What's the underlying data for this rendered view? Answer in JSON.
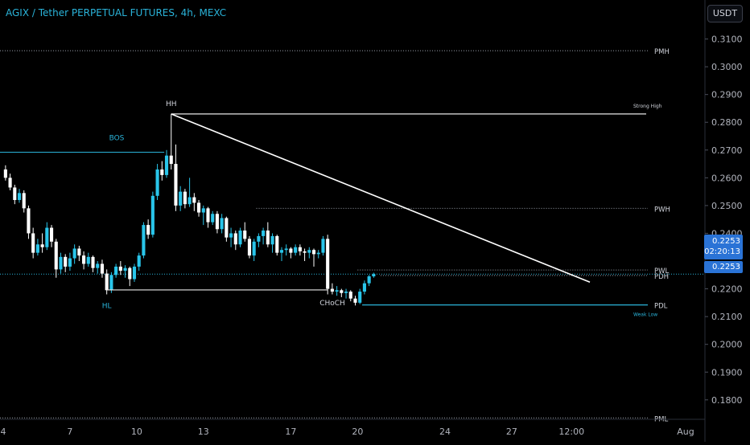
{
  "header": {
    "title": "AGIX / Tether PERPETUAL FUTURES, 4h, MEXC",
    "currency_label": "USDT"
  },
  "price_badge": {
    "price": "0.2253",
    "countdown": "02:20:13",
    "price_line": "0.2253"
  },
  "colors": {
    "background": "#000000",
    "accent": "#2ab3d9",
    "candle_up": "#29c5ea",
    "candle_down": "#ffffff",
    "price_badge": "#2a73d6",
    "level_line": "#ffffff"
  },
  "chart_data": {
    "type": "candlestick",
    "ylim": [
      0.173,
      0.3145
    ],
    "y_ticks": [
      "0.3100",
      "0.3000",
      "0.2900",
      "0.2800",
      "0.2700",
      "0.2600",
      "0.2500",
      "0.2400",
      "0.2200",
      "0.2100",
      "0.2000",
      "0.1900",
      "0.1800"
    ],
    "x_ticks": [
      "4",
      "7",
      "10",
      "13",
      "17",
      "20",
      "24",
      "27",
      "12:00",
      "Aug"
    ],
    "candles": [
      [
        0.263,
        0.2645,
        0.259,
        0.26
      ],
      [
        0.26,
        0.2615,
        0.2555,
        0.2565
      ],
      [
        0.2565,
        0.2575,
        0.2505,
        0.252
      ],
      [
        0.252,
        0.256,
        0.251,
        0.2545
      ],
      [
        0.2545,
        0.2555,
        0.2475,
        0.249
      ],
      [
        0.249,
        0.25,
        0.238,
        0.24
      ],
      [
        0.24,
        0.242,
        0.231,
        0.233
      ],
      [
        0.233,
        0.238,
        0.232,
        0.236
      ],
      [
        0.236,
        0.24,
        0.233,
        0.235
      ],
      [
        0.235,
        0.244,
        0.234,
        0.242
      ],
      [
        0.242,
        0.243,
        0.235,
        0.237
      ],
      [
        0.237,
        0.238,
        0.224,
        0.227
      ],
      [
        0.227,
        0.233,
        0.2255,
        0.2315
      ],
      [
        0.2315,
        0.2325,
        0.226,
        0.228
      ],
      [
        0.228,
        0.233,
        0.2265,
        0.231
      ],
      [
        0.231,
        0.236,
        0.229,
        0.2345
      ],
      [
        0.2345,
        0.2355,
        0.23,
        0.232
      ],
      [
        0.232,
        0.2335,
        0.227,
        0.229
      ],
      [
        0.229,
        0.233,
        0.228,
        0.2315
      ],
      [
        0.2315,
        0.232,
        0.226,
        0.2275
      ],
      [
        0.2275,
        0.23,
        0.2255,
        0.229
      ],
      [
        0.229,
        0.2305,
        0.224,
        0.2255
      ],
      [
        0.2255,
        0.227,
        0.218,
        0.2195
      ],
      [
        0.2195,
        0.226,
        0.2185,
        0.225
      ],
      [
        0.225,
        0.229,
        0.224,
        0.228
      ],
      [
        0.228,
        0.23,
        0.225,
        0.2265
      ],
      [
        0.2265,
        0.2285,
        0.224,
        0.2275
      ],
      [
        0.2275,
        0.228,
        0.221,
        0.2235
      ],
      [
        0.2235,
        0.229,
        0.2225,
        0.228
      ],
      [
        0.228,
        0.233,
        0.2265,
        0.232
      ],
      [
        0.232,
        0.244,
        0.231,
        0.243
      ],
      [
        0.243,
        0.245,
        0.238,
        0.2395
      ],
      [
        0.2395,
        0.255,
        0.2385,
        0.2535
      ],
      [
        0.2535,
        0.265,
        0.252,
        0.263
      ],
      [
        0.263,
        0.266,
        0.259,
        0.261
      ],
      [
        0.261,
        0.27,
        0.26,
        0.268
      ],
      [
        0.268,
        0.283,
        0.263,
        0.265
      ],
      [
        0.265,
        0.272,
        0.248,
        0.25
      ],
      [
        0.25,
        0.257,
        0.248,
        0.255
      ],
      [
        0.255,
        0.256,
        0.249,
        0.2505
      ],
      [
        0.2505,
        0.26,
        0.2495,
        0.253
      ],
      [
        0.253,
        0.2545,
        0.248,
        0.251
      ],
      [
        0.251,
        0.252,
        0.246,
        0.2475
      ],
      [
        0.2475,
        0.25,
        0.243,
        0.249
      ],
      [
        0.249,
        0.2495,
        0.242,
        0.244
      ],
      [
        0.244,
        0.248,
        0.243,
        0.247
      ],
      [
        0.247,
        0.248,
        0.24,
        0.2415
      ],
      [
        0.2415,
        0.247,
        0.24,
        0.2455
      ],
      [
        0.2455,
        0.246,
        0.237,
        0.2385
      ],
      [
        0.2385,
        0.242,
        0.235,
        0.24
      ],
      [
        0.24,
        0.241,
        0.234,
        0.236
      ],
      [
        0.236,
        0.242,
        0.235,
        0.241
      ],
      [
        0.241,
        0.244,
        0.237,
        0.238
      ],
      [
        0.238,
        0.239,
        0.231,
        0.232
      ],
      [
        0.232,
        0.238,
        0.23,
        0.237
      ],
      [
        0.237,
        0.24,
        0.235,
        0.239
      ],
      [
        0.239,
        0.242,
        0.236,
        0.241
      ],
      [
        0.241,
        0.244,
        0.235,
        0.236
      ],
      [
        0.236,
        0.24,
        0.233,
        0.239
      ],
      [
        0.239,
        0.2395,
        0.232,
        0.233
      ],
      [
        0.233,
        0.235,
        0.23,
        0.234
      ],
      [
        0.234,
        0.236,
        0.232,
        0.2345
      ],
      [
        0.2345,
        0.235,
        0.231,
        0.233
      ],
      [
        0.233,
        0.236,
        0.232,
        0.235
      ],
      [
        0.235,
        0.236,
        0.232,
        0.2335
      ],
      [
        0.2335,
        0.2345,
        0.23,
        0.233
      ],
      [
        0.233,
        0.235,
        0.231,
        0.234
      ],
      [
        0.234,
        0.2345,
        0.228,
        0.2325
      ],
      [
        0.2325,
        0.234,
        0.231,
        0.233
      ],
      [
        0.233,
        0.239,
        0.232,
        0.238
      ],
      [
        0.238,
        0.2395,
        0.218,
        0.22
      ],
      [
        0.22,
        0.222,
        0.218,
        0.219
      ],
      [
        0.219,
        0.221,
        0.2175,
        0.2195
      ],
      [
        0.2195,
        0.22,
        0.217,
        0.2185
      ],
      [
        0.2185,
        0.22,
        0.2165,
        0.219
      ],
      [
        0.219,
        0.2195,
        0.2155,
        0.2165
      ],
      [
        0.2165,
        0.2175,
        0.214,
        0.215
      ],
      [
        0.215,
        0.22,
        0.2145,
        0.219
      ],
      [
        0.219,
        0.223,
        0.218,
        0.222
      ],
      [
        0.222,
        0.225,
        0.221,
        0.2245
      ],
      [
        0.2245,
        0.2258,
        0.224,
        0.2253
      ]
    ],
    "x_span_slots": 128,
    "levels": [
      {
        "label": "PMH",
        "price": 0.3058,
        "style": "dotted",
        "start_slot": 0
      },
      {
        "label": "PWH",
        "price": 0.249,
        "style": "dotted",
        "start_slot": 55
      },
      {
        "label": "PWL",
        "price": 0.2268,
        "style": "dotted",
        "start_slot": 77
      },
      {
        "label": "PDH",
        "price": 0.2248,
        "style": "dotted",
        "start_slot": 82
      },
      {
        "label": "PDL",
        "price": 0.2142,
        "style": "solid-accent",
        "start_slot": 78
      },
      {
        "label": "PML",
        "price": 0.1735,
        "style": "dotted",
        "start_slot": 0
      }
    ],
    "annotations": {
      "hh": "HH",
      "hl": "HL",
      "bos": "BOS",
      "choch": "CHoCH",
      "strong_high": "Strong High",
      "weak_low": "Weak Low"
    }
  }
}
